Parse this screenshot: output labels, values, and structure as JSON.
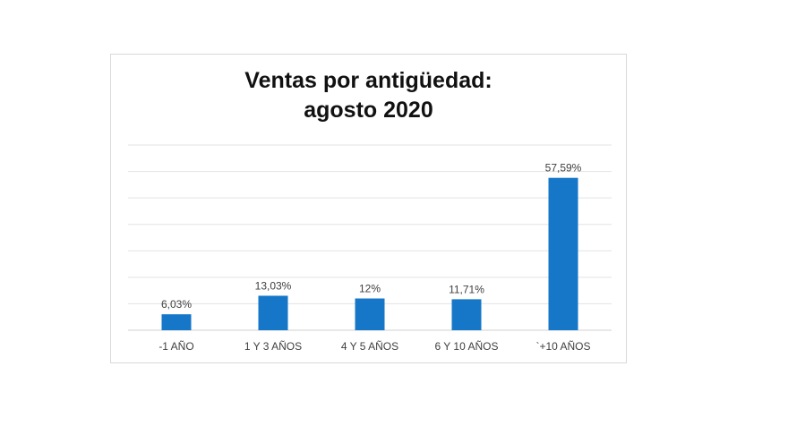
{
  "chart_data": {
    "type": "bar",
    "title_line1": "Ventas por antigüedad:",
    "title_line2": "agosto 2020",
    "categories": [
      "-1 AÑO",
      "1 Y 3 AÑOS",
      "4 Y 5 AÑOS",
      "6 Y 10 AÑOS",
      "`+10 AÑOS"
    ],
    "values": [
      6.03,
      13.03,
      12,
      11.71,
      57.59
    ],
    "data_labels": [
      "6,03%",
      "13,03%",
      "12%",
      "11,71%",
      "57,59%"
    ],
    "ylim": [
      0,
      70
    ],
    "grid_step": 10,
    "grid": true,
    "bar_color": "#1677c8",
    "xlabel": "",
    "ylabel": ""
  }
}
